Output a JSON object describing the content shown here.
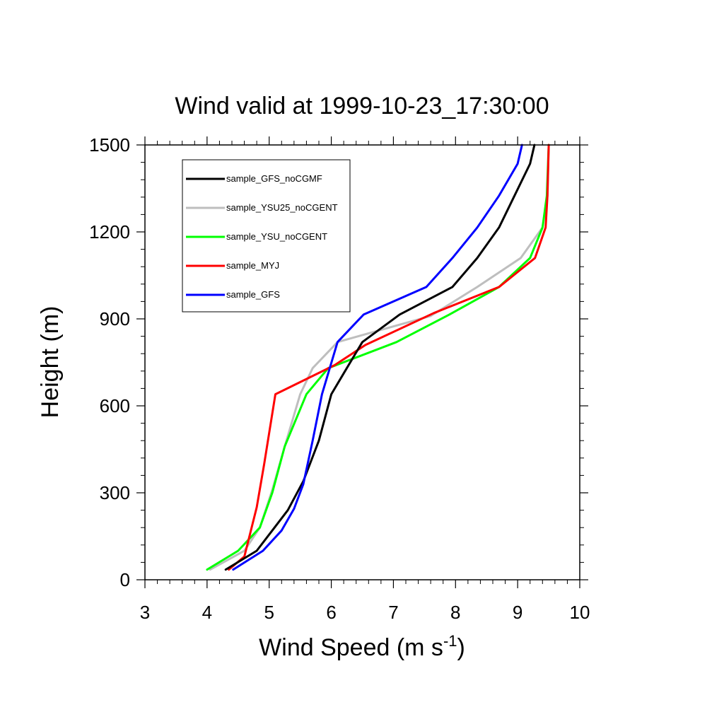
{
  "chart_data": {
    "type": "line",
    "title": "Wind valid at 1999-10-23_17:30:00",
    "xlabel": "Wind Speed (m s",
    "xlabel_sup": "-1",
    "xlabel_tail": ")",
    "ylabel": "Height (m)",
    "xlim": [
      3,
      10
    ],
    "ylim": [
      0,
      1500
    ],
    "x_ticks": [
      "3",
      "4",
      "5",
      "6",
      "7",
      "8",
      "9",
      "10"
    ],
    "y_ticks": [
      "0",
      "300",
      "600",
      "900",
      "1200",
      "1500"
    ],
    "grid": false,
    "legend_position": "top-left",
    "series": [
      {
        "name": "sample_GFS_noCGMF",
        "color": "#000000",
        "points": [
          [
            4.3,
            35
          ],
          [
            4.8,
            100
          ],
          [
            5.05,
            170
          ],
          [
            5.3,
            240
          ],
          [
            5.55,
            340
          ],
          [
            5.8,
            480
          ],
          [
            6.0,
            640
          ],
          [
            6.25,
            730
          ],
          [
            6.5,
            820
          ],
          [
            7.1,
            915
          ],
          [
            7.95,
            1010
          ],
          [
            8.35,
            1110
          ],
          [
            8.7,
            1215
          ],
          [
            8.95,
            1325
          ],
          [
            9.2,
            1435
          ],
          [
            9.27,
            1500
          ]
        ]
      },
      {
        "name": "sample_YSU25_noCGENT",
        "color": "#bebebe",
        "points": [
          [
            4.05,
            35
          ],
          [
            4.6,
            100
          ],
          [
            4.85,
            180
          ],
          [
            5.05,
            310
          ],
          [
            5.25,
            460
          ],
          [
            5.5,
            640
          ],
          [
            5.7,
            730
          ],
          [
            6.1,
            820
          ],
          [
            7.6,
            910
          ],
          [
            8.35,
            1010
          ],
          [
            9.05,
            1110
          ],
          [
            9.4,
            1215
          ],
          [
            9.48,
            1325
          ],
          [
            9.5,
            1500
          ]
        ]
      },
      {
        "name": "sample_YSU_noCGENT",
        "color": "#00ff00",
        "points": [
          [
            4.0,
            35
          ],
          [
            4.5,
            100
          ],
          [
            4.85,
            180
          ],
          [
            5.05,
            300
          ],
          [
            5.25,
            460
          ],
          [
            5.6,
            640
          ],
          [
            5.95,
            730
          ],
          [
            7.05,
            820
          ],
          [
            7.9,
            915
          ],
          [
            8.7,
            1010
          ],
          [
            9.2,
            1110
          ],
          [
            9.4,
            1215
          ],
          [
            9.47,
            1325
          ],
          [
            9.5,
            1500
          ]
        ]
      },
      {
        "name": "sample_MYJ",
        "color": "#ff0000",
        "points": [
          [
            4.35,
            35
          ],
          [
            4.6,
            80
          ],
          [
            4.8,
            250
          ],
          [
            4.92,
            400
          ],
          [
            5.1,
            640
          ],
          [
            6.05,
            740
          ],
          [
            6.55,
            810
          ],
          [
            7.65,
            920
          ],
          [
            8.7,
            1010
          ],
          [
            9.28,
            1110
          ],
          [
            9.45,
            1215
          ],
          [
            9.48,
            1325
          ],
          [
            9.5,
            1500
          ]
        ]
      },
      {
        "name": "sample_GFS",
        "color": "#0000ff",
        "points": [
          [
            4.42,
            35
          ],
          [
            4.9,
            100
          ],
          [
            5.2,
            170
          ],
          [
            5.4,
            245
          ],
          [
            5.55,
            330
          ],
          [
            5.7,
            480
          ],
          [
            5.85,
            640
          ],
          [
            6.1,
            820
          ],
          [
            6.52,
            915
          ],
          [
            7.53,
            1010
          ],
          [
            7.95,
            1110
          ],
          [
            8.35,
            1215
          ],
          [
            8.7,
            1325
          ],
          [
            9.0,
            1435
          ],
          [
            9.07,
            1500
          ]
        ]
      }
    ]
  }
}
